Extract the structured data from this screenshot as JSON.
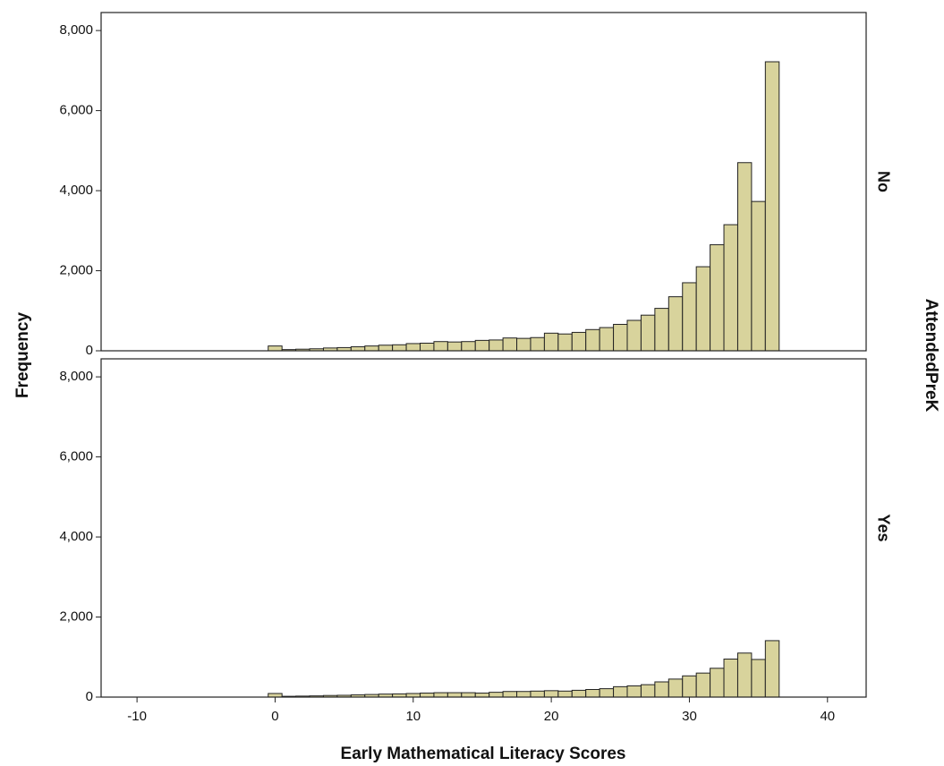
{
  "chart_data": {
    "type": "histogram",
    "x_label": "Early Mathematical Literacy Scores",
    "y_label": "Frequency",
    "facet_label": "AttendedPreK",
    "bins": [
      -0.5,
      0.5,
      1.5,
      2.5,
      3.5,
      4.5,
      5.5,
      6.5,
      7.5,
      8.5,
      9.5,
      10.5,
      11.5,
      12.5,
      13.5,
      14.5,
      15.5,
      16.5,
      17.5,
      18.5,
      19.5,
      20.5,
      21.5,
      22.5,
      23.5,
      24.5,
      25.5,
      26.5,
      27.5,
      28.5,
      29.5,
      30.5,
      31.5,
      32.5,
      33.5,
      34.5,
      35.5,
      36.5
    ],
    "series": [
      {
        "name": "No",
        "color": "#d8d39c",
        "values": [
          120,
          30,
          40,
          50,
          70,
          80,
          100,
          120,
          140,
          150,
          180,
          190,
          230,
          220,
          230,
          260,
          270,
          320,
          310,
          330,
          440,
          420,
          460,
          530,
          580,
          660,
          760,
          890,
          1060,
          1350,
          1700,
          2100,
          2650,
          3150,
          4700,
          3730,
          7220
        ]
      },
      {
        "name": "Yes",
        "color": "#d8d39c",
        "values": [
          90,
          20,
          25,
          30,
          40,
          45,
          55,
          65,
          75,
          80,
          90,
          100,
          110,
          110,
          110,
          100,
          120,
          140,
          140,
          150,
          160,
          150,
          170,
          190,
          210,
          260,
          280,
          310,
          380,
          450,
          530,
          600,
          720,
          950,
          1100,
          940,
          1410
        ]
      }
    ],
    "xlim": [
      -12.6,
      42.8
    ],
    "xticks": [
      -10,
      0,
      10,
      20,
      30,
      40
    ],
    "ylim": [
      0,
      8450
    ],
    "yticks": [
      0,
      {
        "value": 2000,
        "label": "2,000"
      },
      {
        "value": 4000,
        "label": "4,000"
      },
      {
        "value": 6000,
        "label": "6,000"
      },
      {
        "value": 8000,
        "label": "8,000"
      }
    ]
  }
}
